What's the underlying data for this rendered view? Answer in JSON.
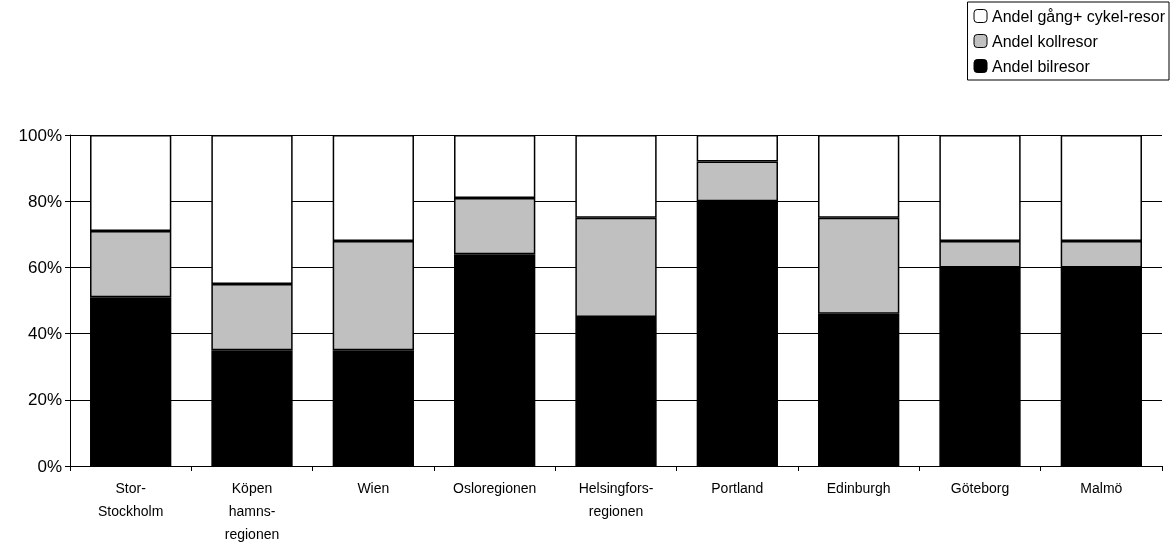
{
  "chart_data": {
    "type": "bar",
    "stacked": true,
    "categories": [
      "Stor-\nStockholm",
      "Köpen\nhamns-\nregionen",
      "Wien",
      "Osloregionen",
      "Helsingfors-\nregionen",
      "Portland",
      "Edinburgh",
      "Göteborg",
      "Malmö"
    ],
    "series": [
      {
        "name": "Andel bilresor",
        "color": "#000000",
        "values": [
          51,
          35,
          35,
          64,
          45,
          80,
          46,
          60,
          60
        ]
      },
      {
        "name": "Andel kollresor",
        "color": "#c0c0c0",
        "values": [
          20,
          20,
          33,
          17,
          30,
          12,
          29,
          8,
          8
        ]
      },
      {
        "name": "Andel gång+ cykel-resor",
        "color": "#ffffff",
        "values": [
          29,
          45,
          32,
          19,
          25,
          8,
          25,
          32,
          32
        ]
      }
    ],
    "ylim": [
      0,
      100
    ],
    "yticks": [
      {
        "value": 0,
        "label": "0%"
      },
      {
        "value": 20,
        "label": "20%"
      },
      {
        "value": 40,
        "label": "40%"
      },
      {
        "value": 60,
        "label": "60%"
      },
      {
        "value": 80,
        "label": "80%"
      },
      {
        "value": 100,
        "label": "100%"
      }
    ],
    "grid": "y",
    "legend": "top right"
  }
}
